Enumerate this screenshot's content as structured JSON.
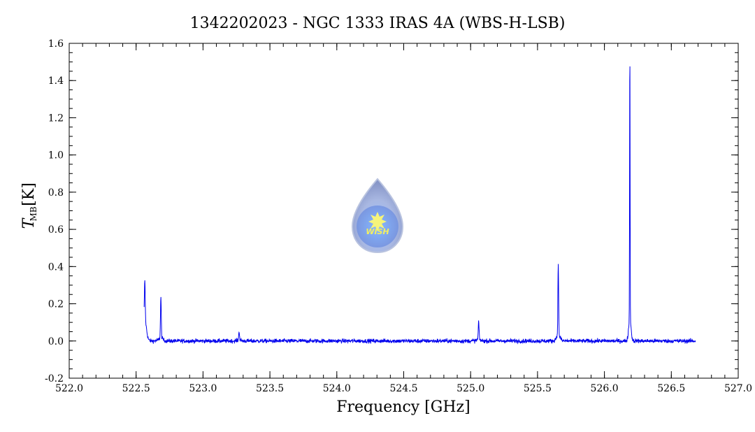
{
  "chart_data": {
    "type": "line",
    "title": "1342202023 - NGC 1333 IRAS 4A (WBS-H-LSB)",
    "xlabel": "Frequency [GHz]",
    "ylabel_main": "T",
    "ylabel_sub": "MB",
    "ylabel_unit": "[K]",
    "xlim": [
      522.0,
      527.0
    ],
    "ylim": [
      -0.2,
      1.6
    ],
    "x_ticks": [
      "522.0",
      "522.5",
      "523.0",
      "523.5",
      "524.0",
      "524.5",
      "525.0",
      "525.5",
      "526.0",
      "526.5",
      "527.0"
    ],
    "y_ticks": [
      "-0.2",
      "0.0",
      "0.2",
      "0.4",
      "0.6",
      "0.8",
      "1.0",
      "1.2",
      "1.4",
      "1.6"
    ],
    "grid": false,
    "series": [
      {
        "color": "#0000ee",
        "x_range": [
          522.56,
          526.68
        ],
        "baseline": 0.0,
        "noise": 0.008,
        "peaks": [
          {
            "x": 522.565,
            "y": 0.2
          },
          {
            "x": 522.685,
            "y": 0.22
          },
          {
            "x": 523.27,
            "y": 0.05
          },
          {
            "x": 525.06,
            "y": 0.1
          },
          {
            "x": 525.655,
            "y": 0.38
          },
          {
            "x": 526.19,
            "y": 1.49
          }
        ]
      }
    ],
    "logo": {
      "text": "WISH"
    }
  }
}
